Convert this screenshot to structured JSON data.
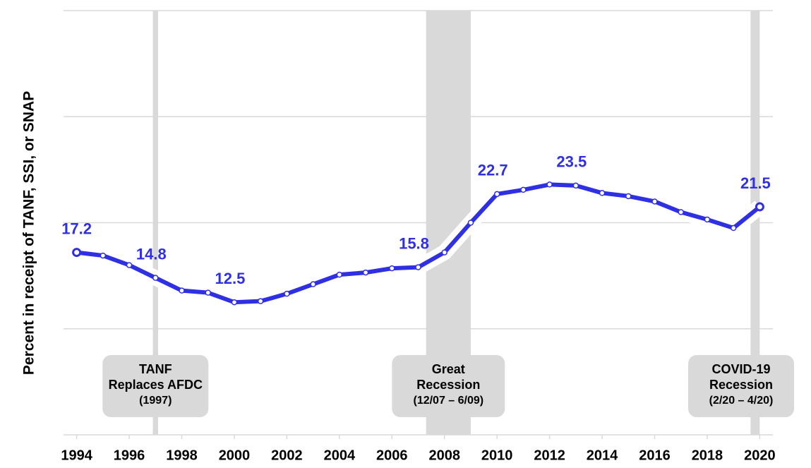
{
  "chart_data": {
    "type": "line",
    "y_label": "Percent in receipt of TANF, SSI, or SNAP",
    "x": [
      1994,
      1995,
      1996,
      1997,
      1998,
      1999,
      2000,
      2001,
      2002,
      2003,
      2004,
      2005,
      2006,
      2007,
      2008,
      2009,
      2010,
      2011,
      2012,
      2013,
      2014,
      2015,
      2016,
      2017,
      2018,
      2019,
      2020
    ],
    "series": [
      {
        "name": null,
        "color": "#2f2fe4",
        "values": [
          17.2,
          16.9,
          16.0,
          14.8,
          13.6,
          13.4,
          12.5,
          12.6,
          13.3,
          14.2,
          15.1,
          15.3,
          15.7,
          15.8,
          17.2,
          20.0,
          22.7,
          23.1,
          23.6,
          23.5,
          22.8,
          22.5,
          22.0,
          21.0,
          20.3,
          19.5,
          21.5
        ],
        "value_labels": [
          "17.2",
          null,
          null,
          "14.8",
          null,
          null,
          "12.5",
          null,
          null,
          null,
          null,
          null,
          null,
          "15.8",
          null,
          null,
          "22.7",
          null,
          null,
          "23.5",
          null,
          null,
          null,
          null,
          null,
          null,
          "21.5"
        ]
      }
    ],
    "xlim": [
      1993.5,
      2020.5
    ],
    "xticks": [
      1994,
      1996,
      1998,
      2000,
      2002,
      2004,
      2006,
      2008,
      2010,
      2012,
      2014,
      2016,
      2018,
      2020
    ],
    "ylim": [
      0,
      40
    ],
    "yticks": [
      0,
      10,
      20,
      30,
      40
    ],
    "grid": true,
    "events": [
      {
        "start": 1996.9,
        "end": 1997.1,
        "label": [
          "TANF",
          "Replaces AFDC",
          "(1997)"
        ]
      },
      {
        "start": 2007.3,
        "end": 2009.0,
        "label": [
          "Great",
          "Recession",
          "(12/07 – 6/09)"
        ]
      },
      {
        "start": 2019.65,
        "end": 2020.0,
        "label": [
          "COVID-19",
          "Recession",
          "(2/20 – 4/20)"
        ]
      }
    ]
  }
}
